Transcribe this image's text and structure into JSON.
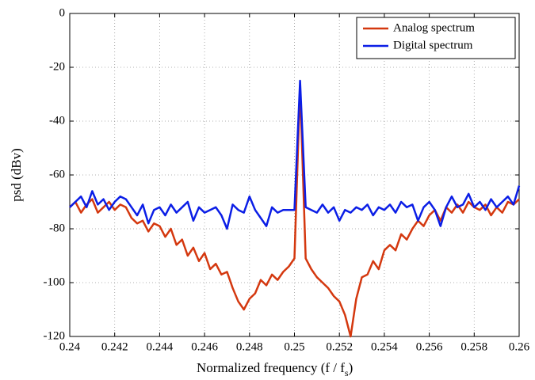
{
  "chart_data": {
    "type": "line",
    "xlabel": [
      "Normalized frequency (f / f",
      "s",
      ")"
    ],
    "ylabel": "psd (dBv)",
    "x": [
      0.24,
      0.24025,
      0.2405,
      0.24075,
      0.241,
      0.24125,
      0.2415,
      0.24175,
      0.242,
      0.24225,
      0.2425,
      0.24275,
      0.243,
      0.24325,
      0.2435,
      0.24375,
      0.244,
      0.24425,
      0.2445,
      0.24475,
      0.245,
      0.24525,
      0.2455,
      0.24575,
      0.246,
      0.24625,
      0.2465,
      0.24675,
      0.247,
      0.24725,
      0.2475,
      0.24775,
      0.248,
      0.24825,
      0.2485,
      0.24875,
      0.249,
      0.24925,
      0.2495,
      0.24975,
      0.25,
      0.25025,
      0.2505,
      0.25075,
      0.251,
      0.25125,
      0.2515,
      0.25175,
      0.252,
      0.25225,
      0.2525,
      0.25275,
      0.253,
      0.25325,
      0.2535,
      0.25375,
      0.254,
      0.25425,
      0.2545,
      0.25475,
      0.255,
      0.25525,
      0.2555,
      0.25575,
      0.256,
      0.25625,
      0.2565,
      0.25675,
      0.257,
      0.25725,
      0.2575,
      0.25775,
      0.258,
      0.25825,
      0.2585,
      0.25875,
      0.259,
      0.25925,
      0.2595,
      0.25975,
      0.26
    ],
    "series": [
      {
        "name": "Analog spectrum",
        "color": "#d4380f",
        "values": [
          -72,
          -70,
          -74,
          -71,
          -69,
          -74,
          -72,
          -70,
          -73,
          -71,
          -72,
          -76,
          -78,
          -77,
          -81,
          -78,
          -79,
          -83,
          -80,
          -86,
          -84,
          -90,
          -87,
          -92,
          -89,
          -95,
          -93,
          -97,
          -96,
          -102,
          -107,
          -110,
          -106,
          -104,
          -99,
          -101,
          -97,
          -99,
          -96,
          -94,
          -91,
          -27,
          -91,
          -95,
          -98,
          -100,
          -102,
          -105,
          -107,
          -112,
          -120,
          -106,
          -98,
          -97,
          -92,
          -95,
          -88,
          -86,
          -88,
          -82,
          -84,
          -80,
          -77,
          -79,
          -75,
          -73,
          -77,
          -72,
          -74,
          -71,
          -74,
          -70,
          -72,
          -73,
          -71,
          -75,
          -72,
          -74,
          -70,
          -71,
          -69
        ]
      },
      {
        "name": "Digital spectrum",
        "color": "#0b1ee6",
        "values": [
          -72,
          -70,
          -68,
          -72,
          -66,
          -71,
          -69,
          -73,
          -70,
          -68,
          -69,
          -72,
          -75,
          -71,
          -78,
          -73,
          -72,
          -75,
          -71,
          -74,
          -72,
          -70,
          -77,
          -72,
          -74,
          -73,
          -72,
          -75,
          -80,
          -71,
          -73,
          -74,
          -68,
          -73,
          -76,
          -79,
          -72,
          -74,
          -73,
          -73,
          -73,
          -25,
          -72,
          -73,
          -74,
          -71,
          -74,
          -72,
          -77,
          -73,
          -74,
          -72,
          -73,
          -71,
          -75,
          -72,
          -73,
          -71,
          -74,
          -70,
          -72,
          -71,
          -77,
          -72,
          -70,
          -73,
          -79,
          -72,
          -68,
          -72,
          -71,
          -67,
          -72,
          -70,
          -73,
          -69,
          -72,
          -70,
          -68,
          -71,
          -64
        ]
      }
    ],
    "xlim": [
      0.24,
      0.26
    ],
    "xticks": [
      0.24,
      0.242,
      0.244,
      0.246,
      0.248,
      0.25,
      0.252,
      0.254,
      0.256,
      0.258,
      0.26
    ],
    "ylim": [
      -120,
      0
    ],
    "yticks": [
      0,
      -20,
      -40,
      -60,
      -80,
      -100,
      -120
    ],
    "grid": true,
    "legend": "upper right"
  }
}
